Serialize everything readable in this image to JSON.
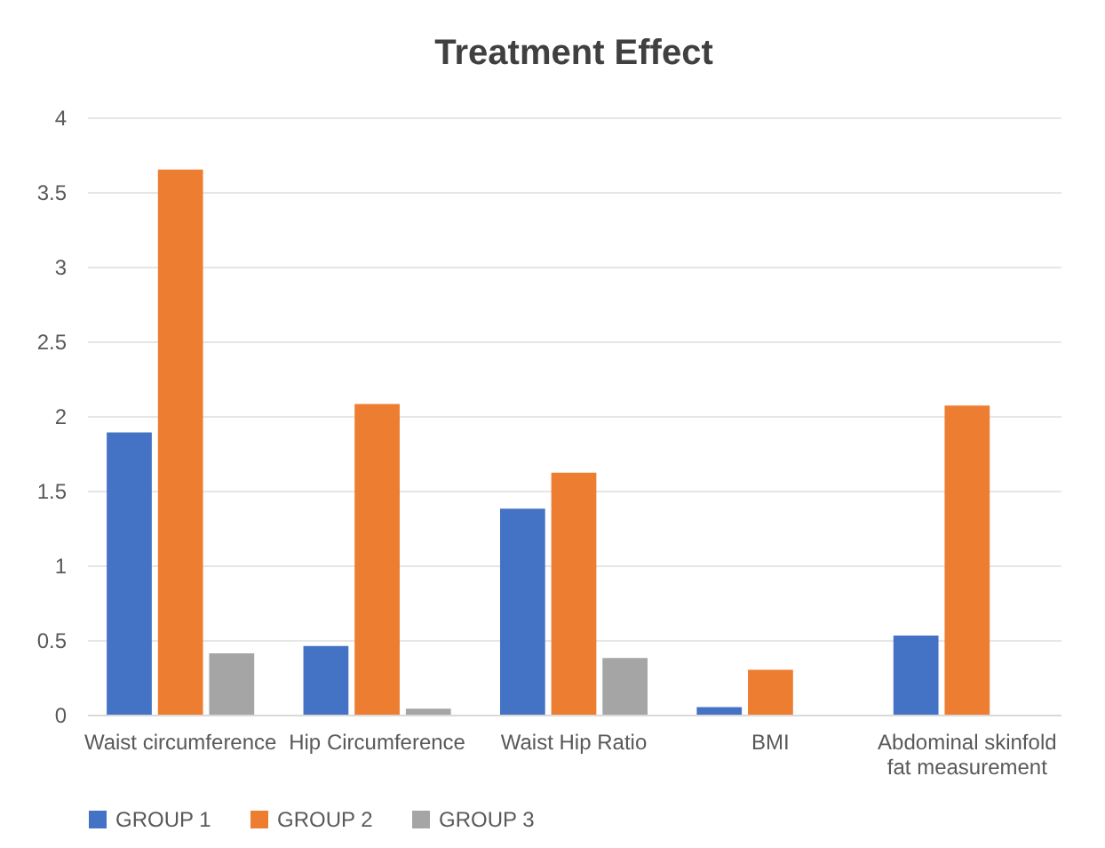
{
  "chart_data": {
    "type": "bar",
    "title": "Treatment Effect",
    "categories": [
      "Waist circumference",
      "Hip Circumference",
      "Waist Hip Ratio",
      "BMI",
      "Abdominal skinfold fat measurement"
    ],
    "series": [
      {
        "name": "GROUP 1",
        "color": "#4472c4",
        "values": [
          1.89,
          0.46,
          1.38,
          0.05,
          0.53
        ]
      },
      {
        "name": "GROUP 2",
        "color": "#ed7d31",
        "values": [
          3.65,
          2.08,
          1.62,
          0.3,
          2.07
        ]
      },
      {
        "name": "GROUP 3",
        "color": "#a5a5a5",
        "values": [
          0.41,
          0.04,
          0.38,
          null,
          null
        ]
      }
    ],
    "ylim": [
      0,
      4
    ],
    "yticks": [
      0,
      0.5,
      1,
      1.5,
      2,
      2.5,
      3,
      3.5,
      4
    ],
    "grid": "y",
    "legend": "bottom"
  }
}
